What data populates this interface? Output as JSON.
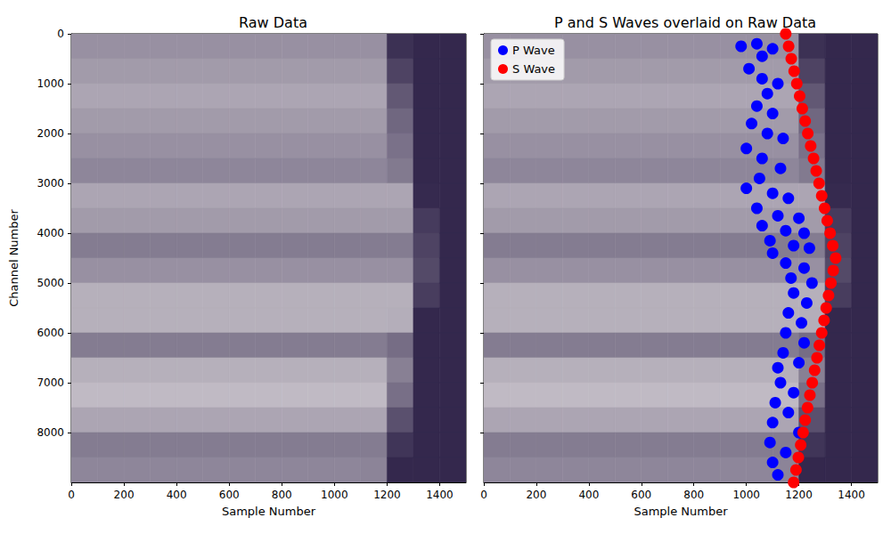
{
  "chart_data": [
    {
      "type": "heatmap",
      "title": "Raw Data",
      "xlabel": "Sample Number",
      "ylabel": "Channel Number",
      "xlim": [
        0,
        1500
      ],
      "ylim": [
        9000,
        0
      ],
      "xticks": [
        0,
        200,
        400,
        600,
        800,
        1000,
        1200,
        1400
      ],
      "yticks": [
        0,
        1000,
        2000,
        3000,
        4000,
        5000,
        6000,
        7000,
        8000
      ],
      "grid": false,
      "tick_labels": true,
      "raw_data": {
        "sample_bins": [
          0,
          100,
          200,
          300,
          400,
          500,
          600,
          700,
          800,
          900,
          1000,
          1100,
          1200,
          1300,
          1400,
          1500
        ],
        "channel_bins": [
          0,
          500,
          1000,
          1500,
          2000,
          2500,
          3000,
          3500,
          4000,
          4500,
          5000,
          5500,
          6000,
          6500,
          7000,
          7500,
          8000,
          8500,
          9000
        ],
        "cells": [
          [
            0.45,
            0.45,
            0.45,
            0.45,
            0.45,
            0.45,
            0.45,
            0.45,
            0.45,
            0.45,
            0.45,
            0.45,
            0.91,
            0.95,
            0.95
          ],
          [
            0.4,
            0.4,
            0.4,
            0.4,
            0.4,
            0.4,
            0.4,
            0.4,
            0.4,
            0.4,
            0.4,
            0.4,
            0.82,
            0.95,
            0.95
          ],
          [
            0.35,
            0.35,
            0.35,
            0.35,
            0.35,
            0.35,
            0.35,
            0.35,
            0.35,
            0.35,
            0.35,
            0.35,
            0.72,
            0.95,
            0.95
          ],
          [
            0.4,
            0.4,
            0.4,
            0.4,
            0.4,
            0.4,
            0.4,
            0.4,
            0.4,
            0.4,
            0.4,
            0.4,
            0.65,
            0.95,
            0.95
          ],
          [
            0.45,
            0.45,
            0.45,
            0.45,
            0.45,
            0.45,
            0.45,
            0.45,
            0.45,
            0.45,
            0.45,
            0.45,
            0.6,
            0.95,
            0.95
          ],
          [
            0.5,
            0.5,
            0.5,
            0.5,
            0.5,
            0.5,
            0.5,
            0.5,
            0.5,
            0.5,
            0.5,
            0.5,
            0.56,
            0.95,
            0.95
          ],
          [
            0.35,
            0.35,
            0.35,
            0.35,
            0.35,
            0.35,
            0.35,
            0.35,
            0.35,
            0.35,
            0.35,
            0.35,
            0.35,
            0.94,
            0.95
          ],
          [
            0.4,
            0.4,
            0.4,
            0.4,
            0.4,
            0.4,
            0.4,
            0.4,
            0.4,
            0.4,
            0.4,
            0.4,
            0.4,
            0.86,
            0.95
          ],
          [
            0.55,
            0.55,
            0.55,
            0.55,
            0.55,
            0.55,
            0.55,
            0.55,
            0.55,
            0.55,
            0.55,
            0.55,
            0.55,
            0.82,
            0.95
          ],
          [
            0.45,
            0.45,
            0.45,
            0.45,
            0.45,
            0.45,
            0.45,
            0.45,
            0.45,
            0.45,
            0.45,
            0.45,
            0.45,
            0.79,
            0.95
          ],
          [
            0.3,
            0.3,
            0.3,
            0.3,
            0.3,
            0.3,
            0.3,
            0.3,
            0.3,
            0.3,
            0.3,
            0.3,
            0.3,
            0.85,
            0.95
          ],
          [
            0.3,
            0.3,
            0.3,
            0.3,
            0.3,
            0.3,
            0.3,
            0.3,
            0.3,
            0.3,
            0.3,
            0.3,
            0.31,
            0.95,
            0.95
          ],
          [
            0.55,
            0.55,
            0.55,
            0.55,
            0.55,
            0.55,
            0.55,
            0.55,
            0.55,
            0.55,
            0.55,
            0.55,
            0.62,
            0.95,
            0.95
          ],
          [
            0.3,
            0.3,
            0.3,
            0.3,
            0.3,
            0.3,
            0.3,
            0.3,
            0.3,
            0.3,
            0.3,
            0.3,
            0.53,
            0.95,
            0.95
          ],
          [
            0.25,
            0.25,
            0.25,
            0.25,
            0.25,
            0.25,
            0.25,
            0.25,
            0.25,
            0.25,
            0.25,
            0.25,
            0.61,
            0.95,
            0.95
          ],
          [
            0.35,
            0.35,
            0.35,
            0.35,
            0.35,
            0.35,
            0.35,
            0.35,
            0.35,
            0.35,
            0.35,
            0.35,
            0.76,
            0.95,
            0.95
          ],
          [
            0.55,
            0.55,
            0.55,
            0.55,
            0.55,
            0.55,
            0.55,
            0.55,
            0.55,
            0.55,
            0.55,
            0.55,
            0.89,
            0.95,
            0.95
          ],
          [
            0.5,
            0.5,
            0.5,
            0.5,
            0.5,
            0.5,
            0.5,
            0.5,
            0.5,
            0.5,
            0.5,
            0.51,
            0.95,
            0.95,
            0.95
          ]
        ]
      }
    },
    {
      "type": "scatter",
      "title": "P and S Waves overlaid on Raw Data",
      "xlabel": "Sample Number",
      "xlim": [
        0,
        1500
      ],
      "ylim": [
        9000,
        0
      ],
      "xticks": [
        0,
        200,
        400,
        600,
        800,
        1000,
        1200,
        1400
      ],
      "yticks": [
        0,
        1000,
        2000,
        3000,
        4000,
        5000,
        6000,
        7000,
        8000
      ],
      "grid": false,
      "tick_labels": "x",
      "legend": "upper left",
      "raw_data": {
        "sample_bins": [
          0,
          100,
          200,
          300,
          400,
          500,
          600,
          700,
          800,
          900,
          1000,
          1100,
          1200,
          1300,
          1400,
          1500
        ],
        "channel_bins": [
          0,
          500,
          1000,
          1500,
          2000,
          2500,
          3000,
          3500,
          4000,
          4500,
          5000,
          5500,
          6000,
          6500,
          7000,
          7500,
          8000,
          8500,
          9000
        ],
        "cells": [
          [
            0.45,
            0.45,
            0.45,
            0.45,
            0.45,
            0.45,
            0.45,
            0.45,
            0.45,
            0.45,
            0.45,
            0.45,
            0.91,
            0.95,
            0.95
          ],
          [
            0.4,
            0.4,
            0.4,
            0.4,
            0.4,
            0.4,
            0.4,
            0.4,
            0.4,
            0.4,
            0.4,
            0.4,
            0.82,
            0.95,
            0.95
          ],
          [
            0.35,
            0.35,
            0.35,
            0.35,
            0.35,
            0.35,
            0.35,
            0.35,
            0.35,
            0.35,
            0.35,
            0.35,
            0.72,
            0.95,
            0.95
          ],
          [
            0.4,
            0.4,
            0.4,
            0.4,
            0.4,
            0.4,
            0.4,
            0.4,
            0.4,
            0.4,
            0.4,
            0.4,
            0.65,
            0.95,
            0.95
          ],
          [
            0.45,
            0.45,
            0.45,
            0.45,
            0.45,
            0.45,
            0.45,
            0.45,
            0.45,
            0.45,
            0.45,
            0.45,
            0.6,
            0.95,
            0.95
          ],
          [
            0.5,
            0.5,
            0.5,
            0.5,
            0.5,
            0.5,
            0.5,
            0.5,
            0.5,
            0.5,
            0.5,
            0.5,
            0.56,
            0.95,
            0.95
          ],
          [
            0.35,
            0.35,
            0.35,
            0.35,
            0.35,
            0.35,
            0.35,
            0.35,
            0.35,
            0.35,
            0.35,
            0.35,
            0.35,
            0.94,
            0.95
          ],
          [
            0.4,
            0.4,
            0.4,
            0.4,
            0.4,
            0.4,
            0.4,
            0.4,
            0.4,
            0.4,
            0.4,
            0.4,
            0.4,
            0.86,
            0.95
          ],
          [
            0.55,
            0.55,
            0.55,
            0.55,
            0.55,
            0.55,
            0.55,
            0.55,
            0.55,
            0.55,
            0.55,
            0.55,
            0.55,
            0.82,
            0.95
          ],
          [
            0.45,
            0.45,
            0.45,
            0.45,
            0.45,
            0.45,
            0.45,
            0.45,
            0.45,
            0.45,
            0.45,
            0.45,
            0.45,
            0.79,
            0.95
          ],
          [
            0.3,
            0.3,
            0.3,
            0.3,
            0.3,
            0.3,
            0.3,
            0.3,
            0.3,
            0.3,
            0.3,
            0.3,
            0.3,
            0.85,
            0.95
          ],
          [
            0.3,
            0.3,
            0.3,
            0.3,
            0.3,
            0.3,
            0.3,
            0.3,
            0.3,
            0.3,
            0.3,
            0.3,
            0.31,
            0.95,
            0.95
          ],
          [
            0.55,
            0.55,
            0.55,
            0.55,
            0.55,
            0.55,
            0.55,
            0.55,
            0.55,
            0.55,
            0.55,
            0.55,
            0.62,
            0.95,
            0.95
          ],
          [
            0.3,
            0.3,
            0.3,
            0.3,
            0.3,
            0.3,
            0.3,
            0.3,
            0.3,
            0.3,
            0.3,
            0.3,
            0.53,
            0.95,
            0.95
          ],
          [
            0.25,
            0.25,
            0.25,
            0.25,
            0.25,
            0.25,
            0.25,
            0.25,
            0.25,
            0.25,
            0.25,
            0.25,
            0.61,
            0.95,
            0.95
          ],
          [
            0.35,
            0.35,
            0.35,
            0.35,
            0.35,
            0.35,
            0.35,
            0.35,
            0.35,
            0.35,
            0.35,
            0.35,
            0.76,
            0.95,
            0.95
          ],
          [
            0.55,
            0.55,
            0.55,
            0.55,
            0.55,
            0.55,
            0.55,
            0.55,
            0.55,
            0.55,
            0.55,
            0.55,
            0.89,
            0.95,
            0.95
          ],
          [
            0.5,
            0.5,
            0.5,
            0.5,
            0.5,
            0.5,
            0.5,
            0.5,
            0.5,
            0.5,
            0.5,
            0.51,
            0.95,
            0.95,
            0.95
          ]
        ]
      },
      "series": [
        {
          "name": "P Wave",
          "color": "#0000ff",
          "marker": "circle",
          "x": [
            980,
            1040,
            1100,
            1060,
            1010,
            1060,
            1120,
            1080,
            1040,
            1100,
            1020,
            1080,
            1140,
            1000,
            1060,
            1130,
            1050,
            1000,
            1100,
            1160,
            1040,
            1120,
            1200,
            1060,
            1150,
            1220,
            1090,
            1180,
            1240,
            1100,
            1150,
            1220,
            1170,
            1250,
            1180,
            1230,
            1160,
            1210,
            1150,
            1220,
            1140,
            1200,
            1120,
            1130,
            1180,
            1110,
            1160,
            1100,
            1200,
            1090,
            1150,
            1100,
            1120
          ],
          "y": [
            250,
            200,
            300,
            450,
            700,
            900,
            1000,
            1200,
            1450,
            1600,
            1800,
            2000,
            2100,
            2300,
            2500,
            2700,
            2900,
            3100,
            3200,
            3300,
            3500,
            3650,
            3700,
            3850,
            3950,
            4000,
            4150,
            4250,
            4300,
            4400,
            4600,
            4700,
            4900,
            5000,
            5200,
            5400,
            5600,
            5800,
            6000,
            6200,
            6400,
            6600,
            6700,
            7000,
            7200,
            7400,
            7600,
            7800,
            8000,
            8200,
            8400,
            8600,
            8850
          ]
        },
        {
          "name": "S Wave",
          "color": "#ff0000",
          "marker": "circle",
          "x": [
            1150,
            1161,
            1171,
            1182,
            1192,
            1203,
            1213,
            1224,
            1234,
            1245,
            1256,
            1266,
            1277,
            1287,
            1298,
            1308,
            1319,
            1329,
            1340,
            1331,
            1322,
            1313,
            1304,
            1296,
            1287,
            1278,
            1269,
            1260,
            1251,
            1242,
            1233,
            1224,
            1216,
            1207,
            1198,
            1189,
            1180
          ],
          "y": [
            0,
            250,
            500,
            750,
            1000,
            1250,
            1500,
            1750,
            2000,
            2250,
            2500,
            2750,
            3000,
            3250,
            3500,
            3750,
            4000,
            4250,
            4500,
            4750,
            5000,
            5250,
            5500,
            5750,
            6000,
            6250,
            6500,
            6750,
            7000,
            7250,
            7500,
            7750,
            8000,
            8250,
            8500,
            8750,
            9000
          ]
        }
      ]
    }
  ]
}
